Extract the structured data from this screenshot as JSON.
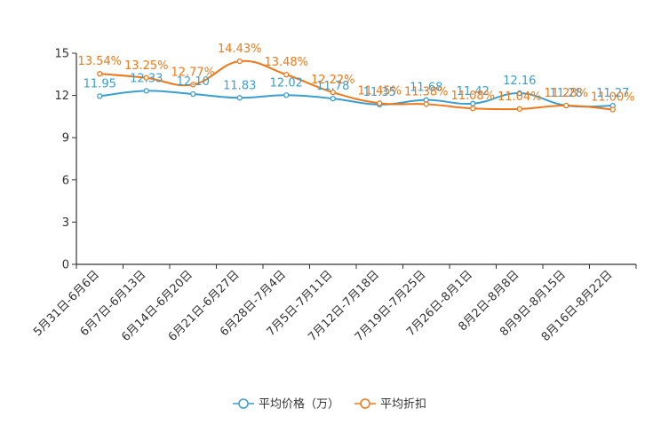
{
  "chart_data": {
    "type": "line",
    "categories": [
      "5月31日-6月6日",
      "6月7日-6月13日",
      "6月14日-6月20日",
      "6月21日-6月27日",
      "6月28日-7月4日",
      "7月5日-7月11日",
      "7月12日-7月18日",
      "7月19日-7月25日",
      "7月26日-8月1日",
      "8月2日-8月8日",
      "8月9日-8月15日",
      "8月16日-8月22日"
    ],
    "ylim": [
      0,
      15
    ],
    "yticks": [
      0,
      3,
      6,
      9,
      12,
      15
    ],
    "ytick_labels": [
      "0",
      "3",
      "6",
      "9",
      "12",
      "15"
    ],
    "series": [
      {
        "name": "平均价格（万）",
        "color": "#3a9fd0",
        "values": [
          11.95,
          12.33,
          12.1,
          11.83,
          12.02,
          11.78,
          11.35,
          11.68,
          11.42,
          12.16,
          11.28,
          11.27
        ],
        "labels": [
          "11.95",
          "12.33",
          "12.10",
          "11.83",
          "12.02",
          "11.78",
          "11.35",
          "11.68",
          "11.42",
          "12.16",
          "11.28",
          "11.27"
        ]
      },
      {
        "name": "平均折扣",
        "color": "#f07818",
        "values": [
          13.54,
          13.25,
          12.77,
          14.43,
          13.48,
          12.22,
          11.45,
          11.38,
          11.08,
          11.04,
          11.28,
          11.0
        ],
        "labels": [
          "13.54%",
          "13.25%",
          "12.77%",
          "14.43%",
          "13.48%",
          "12.22%",
          "11.45%",
          "11.38%",
          "11.08%",
          "11.04%",
          "11.28%",
          "11.00%"
        ]
      }
    ],
    "legend_position": "bottom-center"
  }
}
